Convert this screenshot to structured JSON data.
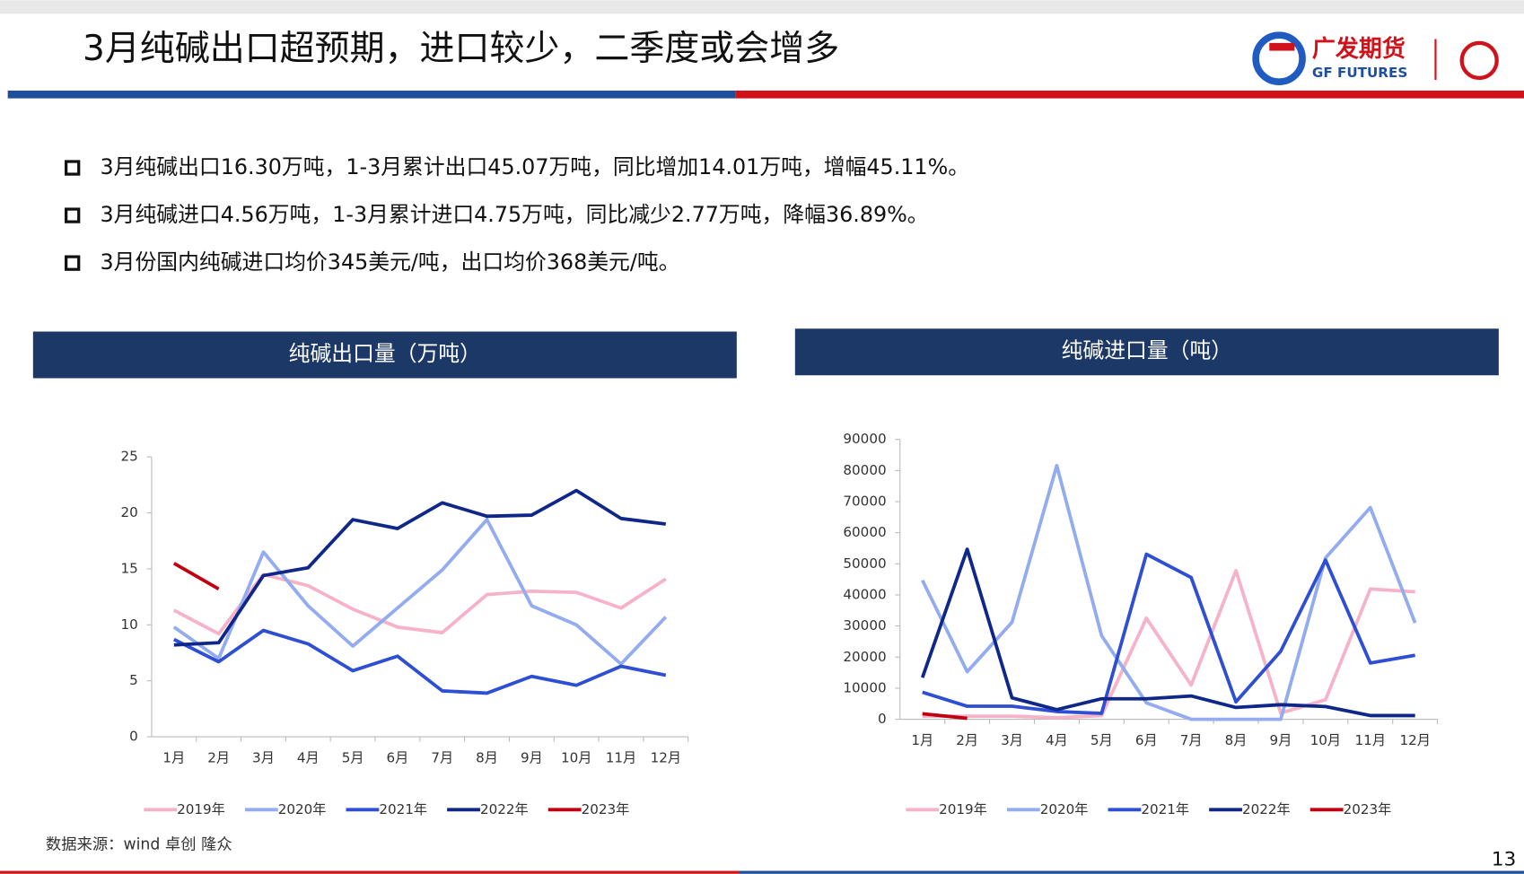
{
  "header": {
    "title": "3月纯碱出口超预期，进口较少，二季度或会增多",
    "logo_cn": "广发期货",
    "logo_en": "GF FUTURES"
  },
  "bullets": [
    "3月纯碱出口16.30万吨，1-3月累计出口45.07万吨，同比增加14.01万吨，增幅45.11%。",
    "3月纯碱进口4.56万吨，1-3月累计进口4.75万吨，同比减少2.77万吨，降幅36.89%。",
    "3月份国内纯碱进口均价345美元/吨，出口均价368美元/吨。"
  ],
  "source": "数据来源：wind 卓创 隆众",
  "page_number": "13",
  "chart_data": [
    {
      "type": "line",
      "title": "纯碱出口量（万吨）",
      "categories": [
        "1月",
        "2月",
        "3月",
        "4月",
        "5月",
        "6月",
        "7月",
        "8月",
        "9月",
        "10月",
        "11月",
        "12月"
      ],
      "ylim": [
        0,
        25
      ],
      "yticks": [
        0,
        5,
        10,
        15,
        20,
        25
      ],
      "series": [
        {
          "name": "2019年",
          "color": "#f6b3c8",
          "values": [
            11.3,
            9.2,
            14.5,
            13.5,
            11.4,
            9.8,
            9.3,
            12.7,
            13.0,
            12.9,
            11.5,
            14.1
          ]
        },
        {
          "name": "2020年",
          "color": "#93acef",
          "values": [
            9.8,
            7.0,
            16.5,
            11.7,
            8.1,
            11.5,
            14.9,
            19.4,
            11.7,
            10.0,
            6.5,
            10.7
          ]
        },
        {
          "name": "2021年",
          "color": "#2e4fd4",
          "values": [
            8.7,
            6.7,
            9.5,
            8.3,
            5.9,
            7.2,
            4.1,
            3.9,
            5.4,
            4.6,
            6.3,
            5.5
          ]
        },
        {
          "name": "2022年",
          "color": "#10278a",
          "values": [
            8.2,
            8.4,
            14.4,
            15.1,
            19.4,
            18.6,
            20.9,
            19.7,
            19.8,
            22.0,
            19.5,
            19.0
          ]
        },
        {
          "name": "2023年",
          "color": "#c00010",
          "values": [
            15.5,
            13.2,
            null,
            null,
            null,
            null,
            null,
            null,
            null,
            null,
            null,
            null
          ]
        }
      ]
    },
    {
      "type": "line",
      "title": "纯碱进口量（吨）",
      "categories": [
        "1月",
        "2月",
        "3月",
        "4月",
        "5月",
        "6月",
        "7月",
        "8月",
        "9月",
        "10月",
        "11月",
        "12月"
      ],
      "ylim": [
        0,
        90000
      ],
      "yticks": [
        0,
        10000,
        20000,
        30000,
        40000,
        50000,
        60000,
        70000,
        80000,
        90000
      ],
      "series": [
        {
          "name": "2019年",
          "color": "#f6b3c8",
          "values": [
            1000,
            1000,
            1000,
            500,
            1200,
            32500,
            11000,
            47800,
            2000,
            6300,
            41900,
            41000
          ]
        },
        {
          "name": "2020年",
          "color": "#93acef",
          "values": [
            44700,
            15300,
            31200,
            81600,
            26900,
            5300,
            0,
            0,
            0,
            51900,
            68100,
            31000
          ]
        },
        {
          "name": "2021年",
          "color": "#2e4fd4",
          "values": [
            8700,
            4200,
            4200,
            2500,
            1900,
            53100,
            45600,
            5600,
            21900,
            51200,
            18100,
            20600
          ]
        },
        {
          "name": "2022年",
          "color": "#10278a",
          "values": [
            13400,
            54700,
            6900,
            3100,
            6600,
            6600,
            7500,
            3800,
            4700,
            4100,
            1200,
            1200
          ]
        },
        {
          "name": "2023年",
          "color": "#c00010",
          "values": [
            1800,
            300,
            null,
            null,
            null,
            null,
            null,
            null,
            null,
            null,
            null,
            null
          ]
        }
      ]
    }
  ]
}
